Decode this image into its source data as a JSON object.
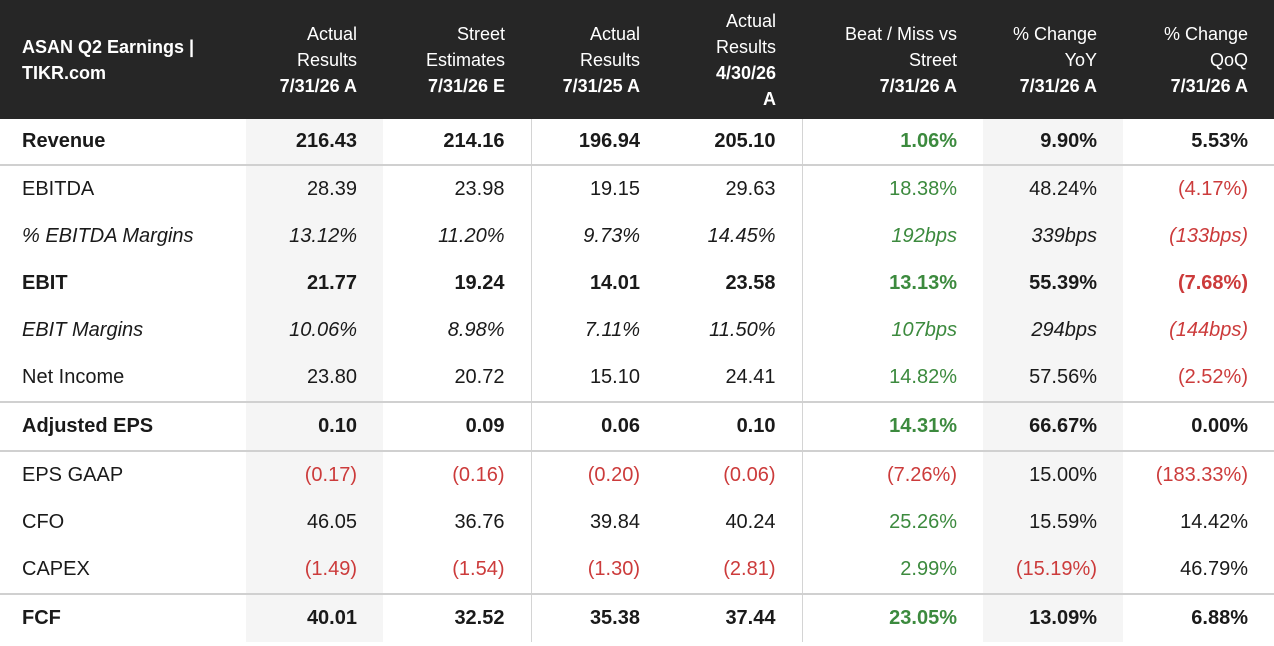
{
  "header": {
    "title_line1": "ASAN Q2 Earnings |",
    "title_line2": "TIKR.com",
    "columns": [
      {
        "line1": "",
        "line2": "Actual",
        "line3": "Results",
        "date": "7/31/26 A"
      },
      {
        "line1": "",
        "line2": "Street",
        "line3": "Estimates",
        "date": "7/31/26 E"
      },
      {
        "line1": "",
        "line2": "Actual",
        "line3": "Results",
        "date": "7/31/25 A"
      },
      {
        "line1": "Actual",
        "line2": "Results",
        "line3": "4/30/26",
        "date": "A"
      },
      {
        "line1": "",
        "line2": "Beat / Miss vs",
        "line3": "Street",
        "date": "7/31/26 A"
      },
      {
        "line1": "",
        "line2": "% Change",
        "line3": "YoY",
        "date": "7/31/26 A"
      },
      {
        "line1": "",
        "line2": "% Change",
        "line3": "QoQ",
        "date": "7/31/26 A"
      }
    ]
  },
  "rows": [
    {
      "label": "Revenue",
      "values": [
        "216.43",
        "214.16",
        "196.94",
        "205.10",
        "1.06%",
        "9.90%",
        "5.53%"
      ]
    },
    {
      "label": "EBITDA",
      "values": [
        "28.39",
        "23.98",
        "19.15",
        "29.63",
        "18.38%",
        "48.24%",
        "(4.17%)"
      ]
    },
    {
      "label": "% EBITDA Margins",
      "values": [
        "13.12%",
        "11.20%",
        "9.73%",
        "14.45%",
        "192bps",
        "339bps",
        "(133bps)"
      ]
    },
    {
      "label": "EBIT",
      "values": [
        "21.77",
        "19.24",
        "14.01",
        "23.58",
        "13.13%",
        "55.39%",
        "(7.68%)"
      ]
    },
    {
      "label": "EBIT Margins",
      "values": [
        "10.06%",
        "8.98%",
        "7.11%",
        "11.50%",
        "107bps",
        "294bps",
        "(144bps)"
      ]
    },
    {
      "label": "Net Income",
      "values": [
        "23.80",
        "20.72",
        "15.10",
        "24.41",
        "14.82%",
        "57.56%",
        "(2.52%)"
      ]
    },
    {
      "label": "Adjusted EPS",
      "values": [
        "0.10",
        "0.09",
        "0.06",
        "0.10",
        "14.31%",
        "66.67%",
        "0.00%"
      ]
    },
    {
      "label": "EPS GAAP",
      "values": [
        "(0.17)",
        "(0.16)",
        "(0.20)",
        "(0.06)",
        "(7.26%)",
        "15.00%",
        "(183.33%)"
      ]
    },
    {
      "label": "CFO",
      "values": [
        "46.05",
        "36.76",
        "39.84",
        "40.24",
        "25.26%",
        "15.59%",
        "14.42%"
      ]
    },
    {
      "label": "CAPEX",
      "values": [
        "(1.49)",
        "(1.54)",
        "(1.30)",
        "(2.81)",
        "2.99%",
        "(15.19%)",
        "46.79%"
      ]
    },
    {
      "label": "FCF",
      "values": [
        "40.01",
        "32.52",
        "35.38",
        "37.44",
        "23.05%",
        "13.09%",
        "6.88%"
      ]
    }
  ],
  "colors": {
    "header_bg": "#262626",
    "positive": "#3c8a3e",
    "negative": "#cc3b3b",
    "shade": "#f5f5f5"
  }
}
